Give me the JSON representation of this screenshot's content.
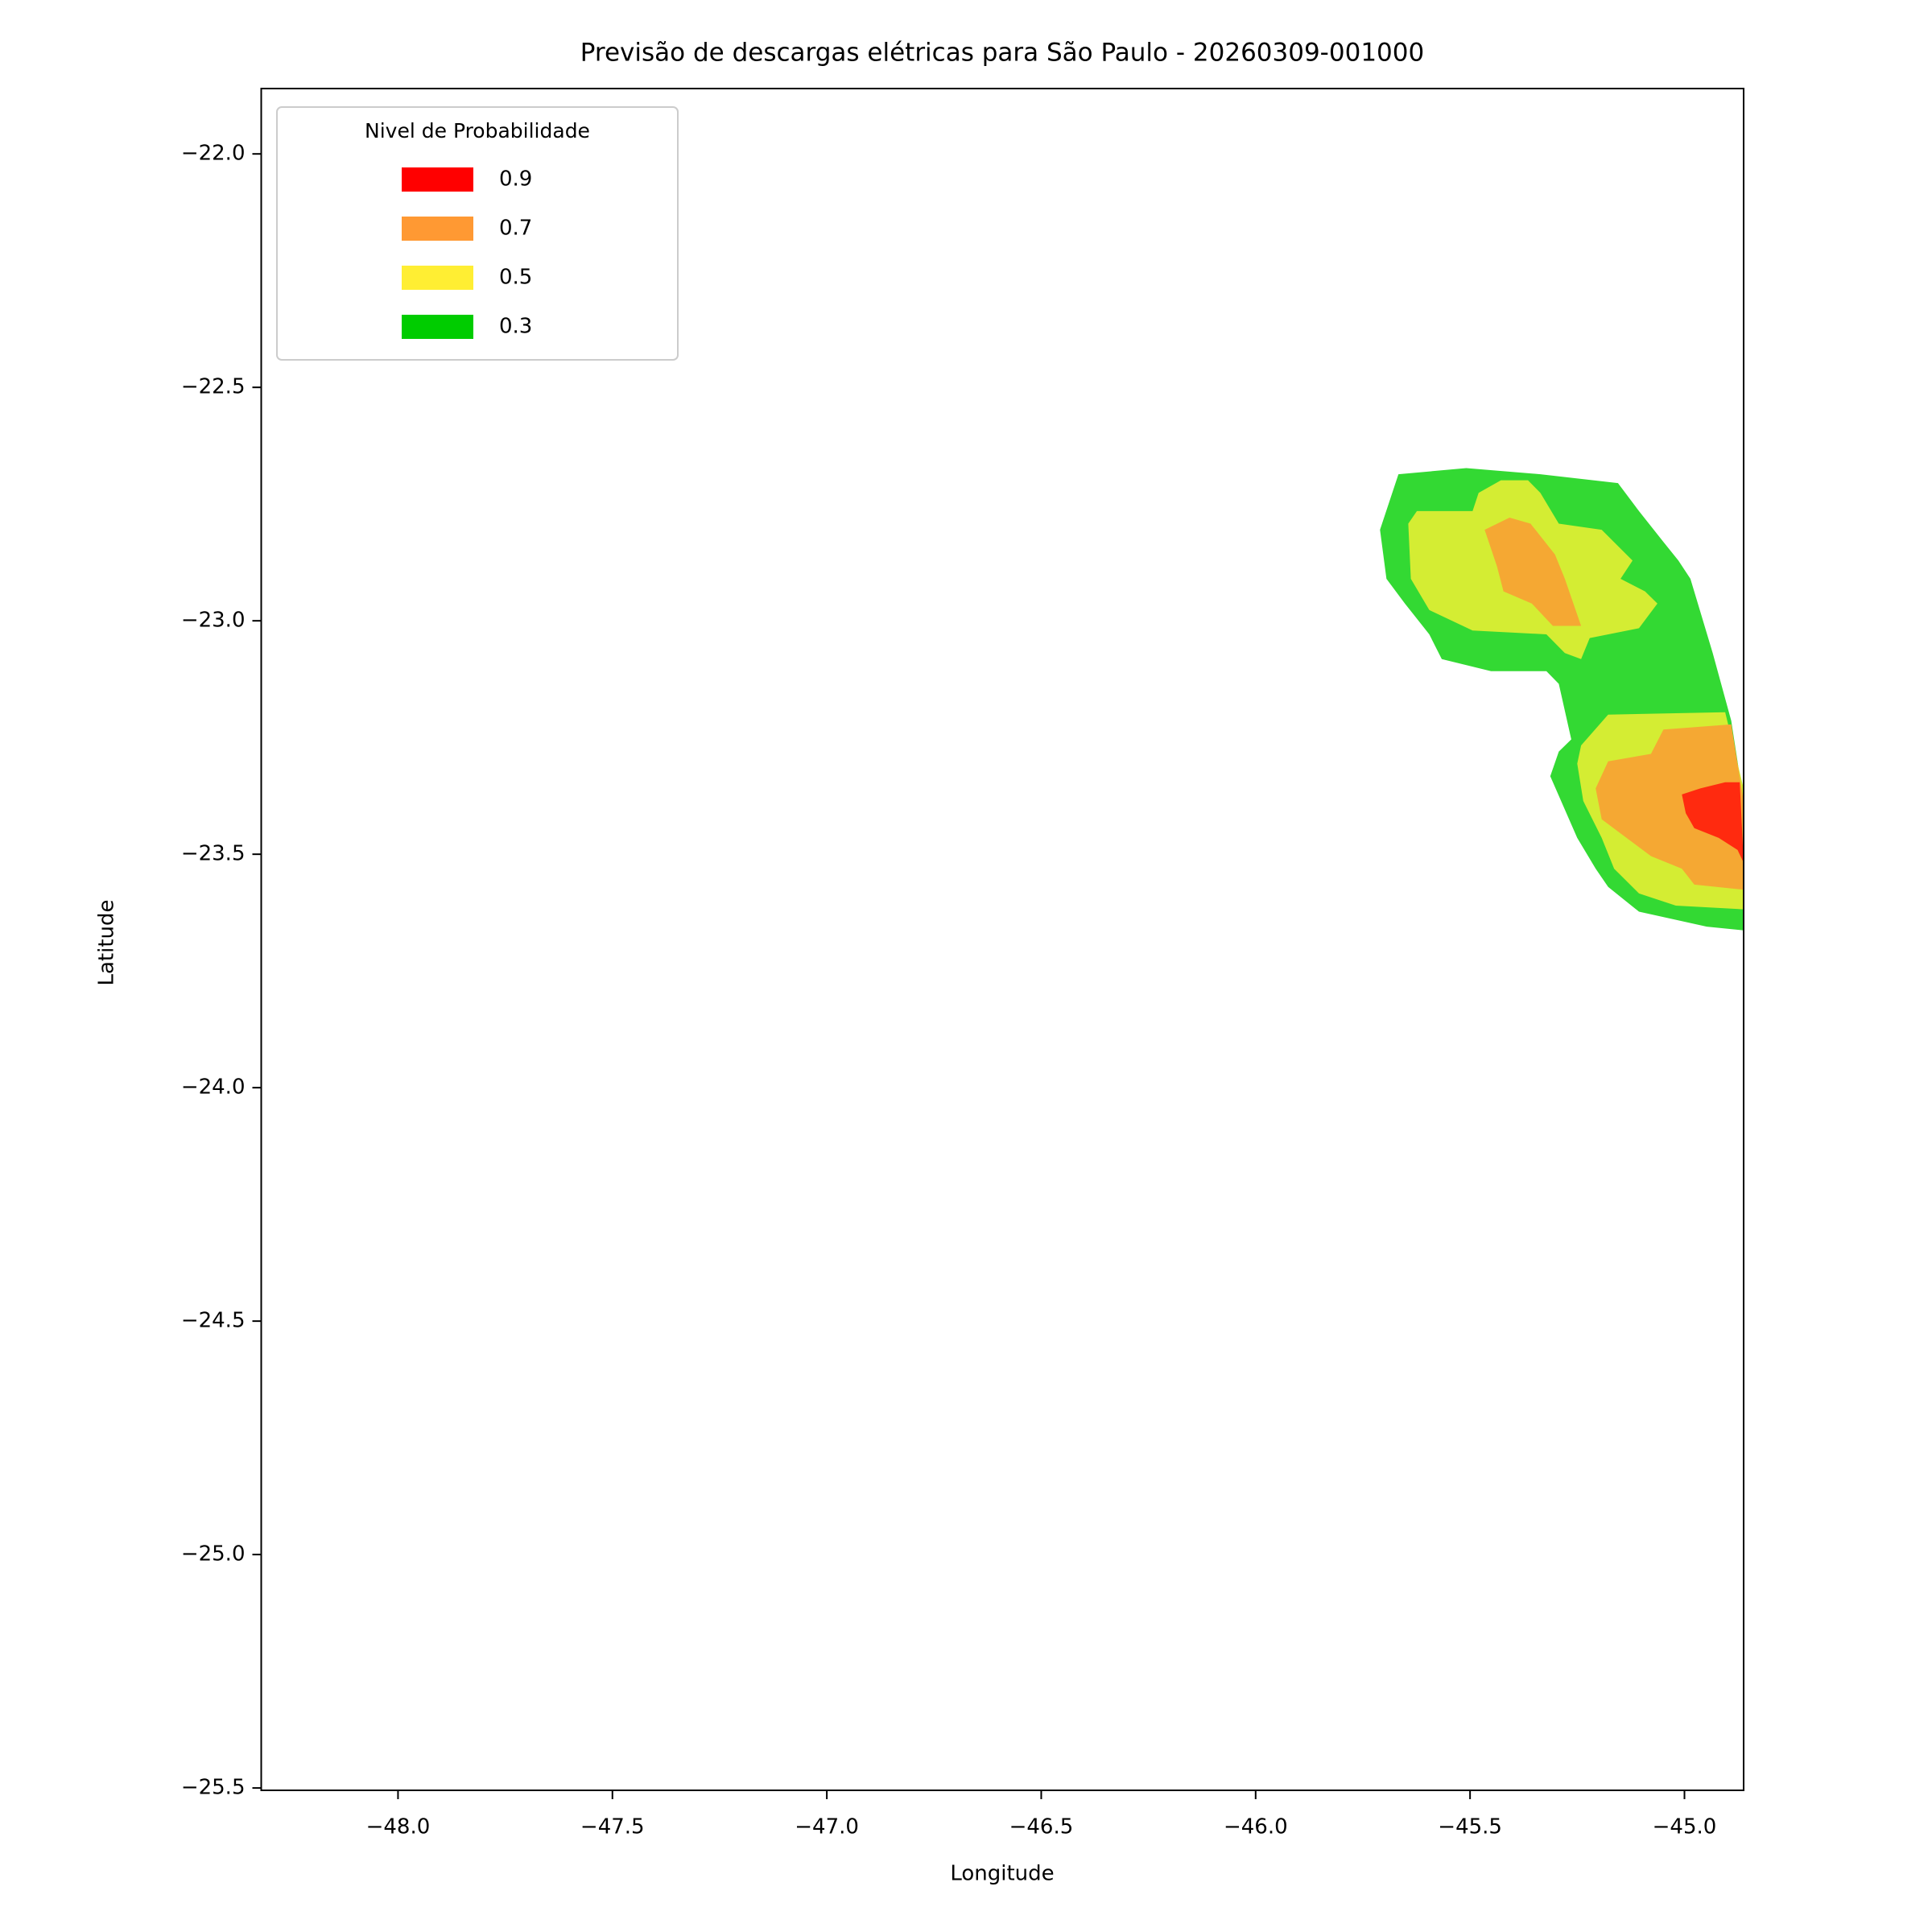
{
  "chart_data": {
    "type": "contourf",
    "title": "Previsão de descargas elétricas para São Paulo - 20260309-001000",
    "xlabel": "Longitude",
    "ylabel": "Latitude",
    "legend_title": "Nivel de Probabilidade",
    "legend_loc": "upper left",
    "xlim": [
      -48.319,
      -44.862
    ],
    "ylim": [
      -25.505,
      -21.86
    ],
    "xticks": [
      {
        "value": -48.0,
        "label": "−48.0"
      },
      {
        "value": -47.5,
        "label": "−47.5"
      },
      {
        "value": -47.0,
        "label": "−47.0"
      },
      {
        "value": -46.5,
        "label": "−46.5"
      },
      {
        "value": -46.0,
        "label": "−46.0"
      },
      {
        "value": -45.5,
        "label": "−45.5"
      },
      {
        "value": -45.0,
        "label": "−45.0"
      }
    ],
    "yticks": [
      {
        "value": -22.0,
        "label": "−22.0"
      },
      {
        "value": -22.5,
        "label": "−22.5"
      },
      {
        "value": -23.0,
        "label": "−23.0"
      },
      {
        "value": -23.5,
        "label": "−23.5"
      },
      {
        "value": -24.0,
        "label": "−24.0"
      },
      {
        "value": -24.5,
        "label": "−24.5"
      },
      {
        "value": -25.0,
        "label": "−25.0"
      },
      {
        "value": -25.5,
        "label": "−25.5"
      }
    ],
    "series": [
      {
        "name": "0.9",
        "color": "#ff0000",
        "fill": "#ff2a0f",
        "polygons": [
          {
            "x": [
              -45.006,
              -44.963,
              -44.905,
              -44.871,
              -44.862,
              -44.876,
              -44.92,
              -44.977,
              -44.997
            ],
            "y": [
              -23.372,
              -23.359,
              -23.346,
              -23.346,
              -23.518,
              -23.491,
              -23.465,
              -23.444,
              -23.412
            ]
          }
        ]
      },
      {
        "name": "0.7",
        "color": "#ff9933",
        "fill": "#f5a833",
        "polygons": [
          {
            "x": [
              -45.466,
              -45.408,
              -45.359,
              -45.302,
              -45.279,
              -45.241,
              -45.307,
              -45.356,
              -45.422,
              -45.437
            ],
            "y": [
              -22.805,
              -22.779,
              -22.792,
              -22.858,
              -22.91,
              -23.011,
              -23.011,
              -22.963,
              -22.937,
              -22.884
            ]
          },
          {
            "x": [
              -45.207,
              -45.178,
              -45.078,
              -45.049,
              -44.891,
              -44.862,
              -44.862,
              -44.977,
              -45.006,
              -45.078,
              -45.135,
              -45.193
            ],
            "y": [
              -23.359,
              -23.301,
              -23.285,
              -23.233,
              -23.222,
              -23.386,
              -23.576,
              -23.565,
              -23.531,
              -23.504,
              -23.465,
              -23.425
            ]
          }
        ]
      },
      {
        "name": "0.5",
        "color": "#ffee33",
        "fill": "#d4ed33",
        "polygons": [
          {
            "x": [
              -45.644,
              -45.624,
              -45.494,
              -45.48,
              -45.428,
              -45.365,
              -45.336,
              -45.293,
              -45.193,
              -45.121,
              -45.149,
              -45.092,
              -45.063,
              -45.106,
              -45.221,
              -45.241,
              -45.279,
              -45.322,
              -45.494,
              -45.595,
              -45.638
            ],
            "y": [
              -22.792,
              -22.765,
              -22.765,
              -22.726,
              -22.699,
              -22.699,
              -22.726,
              -22.792,
              -22.805,
              -22.871,
              -22.91,
              -22.937,
              -22.963,
              -23.016,
              -23.037,
              -23.082,
              -23.069,
              -23.029,
              -23.021,
              -22.977,
              -22.91
            ]
          },
          {
            "x": [
              -45.241,
              -45.178,
              -44.905,
              -44.862,
              -44.862,
              -45.02,
              -45.106,
              -45.164,
              -45.193,
              -45.236,
              -45.25
            ],
            "y": [
              -23.267,
              -23.201,
              -23.196,
              -23.359,
              -23.618,
              -23.61,
              -23.584,
              -23.531,
              -23.465,
              -23.386,
              -23.306
            ]
          }
        ]
      },
      {
        "name": "0.3",
        "color": "#00cc00",
        "fill": "#33d933",
        "polygons": [
          {
            "x": [
              -45.71,
              -45.667,
              -45.509,
              -45.336,
              -45.155,
              -45.106,
              -45.049,
              -45.014,
              -44.986,
              -44.934,
              -44.891,
              -44.862,
              -44.862,
              -44.948,
              -45.106,
              -45.178,
              -45.207,
              -45.25,
              -45.313,
              -45.293,
              -45.264,
              -45.293,
              -45.322,
              -45.451,
              -45.566,
              -45.595,
              -45.652,
              -45.695
            ],
            "y": [
              -22.805,
              -22.686,
              -22.673,
              -22.686,
              -22.705,
              -22.765,
              -22.831,
              -22.871,
              -22.91,
              -23.069,
              -23.214,
              -23.386,
              -23.663,
              -23.655,
              -23.623,
              -23.57,
              -23.531,
              -23.465,
              -23.333,
              -23.28,
              -23.254,
              -23.135,
              -23.108,
              -23.108,
              -23.082,
              -23.029,
              -22.963,
              -22.91
            ]
          }
        ]
      }
    ]
  }
}
